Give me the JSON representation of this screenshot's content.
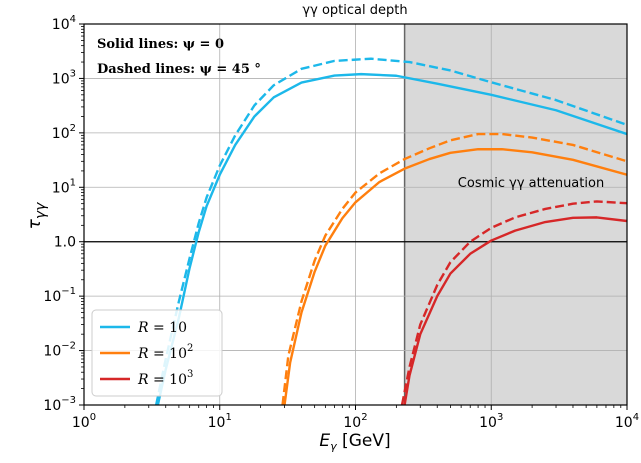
{
  "chart_data": {
    "type": "line",
    "title": "γγ optical depth",
    "xlabel": "E_γ [GeV]",
    "ylabel": "τ_γγ",
    "xscale": "log",
    "yscale": "log",
    "xlim": [
      1,
      10000
    ],
    "ylim": [
      0.001,
      10000
    ],
    "grid": true,
    "x_ticks": [
      {
        "value": 1,
        "base": "10",
        "exp": "0"
      },
      {
        "value": 10,
        "base": "10",
        "exp": "1"
      },
      {
        "value": 100,
        "base": "10",
        "exp": "2"
      },
      {
        "value": 1000,
        "base": "10",
        "exp": "3"
      },
      {
        "value": 10000,
        "base": "10",
        "exp": "4"
      }
    ],
    "y_ticks": [
      {
        "value": 0.001,
        "base": "10",
        "exp": "−3"
      },
      {
        "value": 0.01,
        "base": "10",
        "exp": "−2"
      },
      {
        "value": 0.1,
        "base": "10",
        "exp": "−1"
      },
      {
        "value": 1,
        "base": "1.0",
        "exp": ""
      },
      {
        "value": 10,
        "base": "10",
        "exp": "1"
      },
      {
        "value": 100,
        "base": "10",
        "exp": "2"
      },
      {
        "value": 1000,
        "base": "10",
        "exp": "3"
      },
      {
        "value": 10000,
        "base": "10",
        "exp": "4"
      }
    ],
    "reference_line": {
      "y": 1,
      "color": "#000000"
    },
    "shaded_region": {
      "x_from": 230,
      "x_to": 10000,
      "color": "#d9d9d9",
      "label": "Cosmic γγ attenuation"
    },
    "annotations": [
      "Solid lines: ψ = 0",
      "Dashed lines: ψ = 45 °"
    ],
    "legend_position": "lower-left",
    "series": [
      {
        "name": "R = 10",
        "color": "#1cb8ea",
        "style": "solid",
        "points": [
          [
            3.5,
            0.001
          ],
          [
            4,
            0.0045
          ],
          [
            5,
            0.04
          ],
          [
            6,
            0.33
          ],
          [
            7,
            1.5
          ],
          [
            8,
            4.5
          ],
          [
            10,
            17
          ],
          [
            13,
            60
          ],
          [
            18,
            200
          ],
          [
            25,
            450
          ],
          [
            40,
            840
          ],
          [
            70,
            1130
          ],
          [
            110,
            1200
          ],
          [
            200,
            1120
          ],
          [
            400,
            800
          ],
          [
            1000,
            500
          ],
          [
            3000,
            260
          ],
          [
            10000,
            95
          ]
        ]
      },
      {
        "name": "R = 10",
        "color": "#1cb8ea",
        "style": "dashed",
        "points": [
          [
            3.4,
            0.001
          ],
          [
            4,
            0.007
          ],
          [
            5,
            0.08
          ],
          [
            6,
            0.5
          ],
          [
            7,
            2.2
          ],
          [
            8,
            6.5
          ],
          [
            10,
            25
          ],
          [
            13,
            90
          ],
          [
            18,
            320
          ],
          [
            25,
            750
          ],
          [
            40,
            1500
          ],
          [
            70,
            2100
          ],
          [
            130,
            2300
          ],
          [
            250,
            2000
          ],
          [
            500,
            1400
          ],
          [
            1000,
            850
          ],
          [
            3000,
            400
          ],
          [
            10000,
            140
          ]
        ]
      },
      {
        "name": "R = 10^2",
        "color": "#ff7f0e",
        "style": "solid",
        "points": [
          [
            30,
            0.001
          ],
          [
            33,
            0.006
          ],
          [
            40,
            0.05
          ],
          [
            50,
            0.28
          ],
          [
            60,
            0.85
          ],
          [
            80,
            2.7
          ],
          [
            100,
            5.3
          ],
          [
            150,
            12.5
          ],
          [
            230,
            22
          ],
          [
            350,
            33
          ],
          [
            500,
            43
          ],
          [
            800,
            50
          ],
          [
            1200,
            50
          ],
          [
            2000,
            44
          ],
          [
            4000,
            32
          ],
          [
            10000,
            17
          ]
        ]
      },
      {
        "name": "R = 10^2",
        "color": "#ff7f0e",
        "style": "dashed",
        "points": [
          [
            29,
            0.001
          ],
          [
            32,
            0.008
          ],
          [
            40,
            0.08
          ],
          [
            50,
            0.45
          ],
          [
            60,
            1.3
          ],
          [
            80,
            4
          ],
          [
            100,
            8
          ],
          [
            150,
            18
          ],
          [
            230,
            33
          ],
          [
            350,
            52
          ],
          [
            500,
            73
          ],
          [
            800,
            95
          ],
          [
            1200,
            95
          ],
          [
            2000,
            82
          ],
          [
            4000,
            60
          ],
          [
            10000,
            30
          ]
        ]
      },
      {
        "name": "R = 10^3",
        "color": "#d62728",
        "style": "solid",
        "points": [
          [
            230,
            0.001
          ],
          [
            250,
            0.0035
          ],
          [
            300,
            0.02
          ],
          [
            400,
            0.1
          ],
          [
            500,
            0.26
          ],
          [
            700,
            0.6
          ],
          [
            1000,
            1.05
          ],
          [
            1500,
            1.6
          ],
          [
            2500,
            2.3
          ],
          [
            4000,
            2.75
          ],
          [
            6000,
            2.8
          ],
          [
            10000,
            2.4
          ]
        ]
      },
      {
        "name": "R = 10^3",
        "color": "#d62728",
        "style": "dashed",
        "points": [
          [
            220,
            0.001
          ],
          [
            250,
            0.005
          ],
          [
            300,
            0.03
          ],
          [
            400,
            0.16
          ],
          [
            500,
            0.42
          ],
          [
            700,
            1.0
          ],
          [
            1000,
            1.8
          ],
          [
            1500,
            2.8
          ],
          [
            2500,
            4.0
          ],
          [
            4000,
            5.0
          ],
          [
            6000,
            5.5
          ],
          [
            10000,
            5.1
          ]
        ]
      }
    ],
    "legend": [
      {
        "prefix": "R",
        "equals": " = 10",
        "sup": "",
        "color": "#1cb8ea"
      },
      {
        "prefix": "R",
        "equals": " = 10",
        "sup": "2",
        "color": "#ff7f0e"
      },
      {
        "prefix": "R",
        "equals": " = 10",
        "sup": "3",
        "color": "#d62728"
      }
    ]
  }
}
